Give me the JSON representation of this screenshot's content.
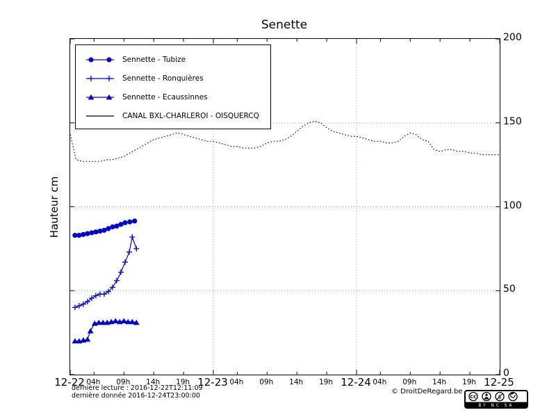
{
  "title": "Senette",
  "ylabel": "Hauteur cm",
  "footer": {
    "line1": "dernière lecture : 2016-12-22T12:11:09",
    "line2": "dernière donnée  2016-12-24T23:00:00",
    "copyright": "© DroitDeRegard.be",
    "cc_badge": "BY NC SA"
  },
  "chart_data": {
    "type": "line",
    "title": "Senette",
    "xlabel": "",
    "ylabel": "Hauteur cm",
    "ylim": [
      0,
      200
    ],
    "xlim_hours": [
      0,
      72
    ],
    "x_unit": "hours since 2016-12-22 00:00",
    "grid": {
      "vertical_hours": [
        24,
        48
      ],
      "horizontal_values": [
        50,
        100,
        150
      ]
    },
    "legend_position": "upper-left",
    "y_ticks": [
      0,
      50,
      100,
      150,
      200
    ],
    "x_major_ticks": [
      {
        "hour": 0,
        "label": "12-22"
      },
      {
        "hour": 24,
        "label": "12-23"
      },
      {
        "hour": 48,
        "label": "12-24"
      },
      {
        "hour": 72,
        "label": "12-25"
      }
    ],
    "x_minor_ticks": [
      {
        "hour": 4,
        "label": "04h"
      },
      {
        "hour": 9,
        "label": "09h"
      },
      {
        "hour": 14,
        "label": "14h"
      },
      {
        "hour": 19,
        "label": "19h"
      },
      {
        "hour": 28,
        "label": "04h"
      },
      {
        "hour": 33,
        "label": "09h"
      },
      {
        "hour": 38,
        "label": "14h"
      },
      {
        "hour": 43,
        "label": "19h"
      },
      {
        "hour": 52,
        "label": "04h"
      },
      {
        "hour": 57,
        "label": "09h"
      },
      {
        "hour": 62,
        "label": "14h"
      },
      {
        "hour": 67,
        "label": "19h"
      }
    ],
    "series": [
      {
        "name": "Sennette - Tubize",
        "color": "#0000cc",
        "marker": "circle",
        "linestyle": "solid",
        "points": [
          [
            0.8,
            83
          ],
          [
            1.5,
            83
          ],
          [
            2.2,
            83.5
          ],
          [
            2.9,
            84
          ],
          [
            3.6,
            84.5
          ],
          [
            4.3,
            85
          ],
          [
            5.0,
            85.5
          ],
          [
            5.7,
            86
          ],
          [
            6.4,
            87
          ],
          [
            7.1,
            88
          ],
          [
            7.8,
            88.5
          ],
          [
            8.5,
            89.5
          ],
          [
            9.2,
            90.5
          ],
          [
            10.0,
            91
          ],
          [
            10.8,
            91.5
          ]
        ]
      },
      {
        "name": "Sennette - Ronquières",
        "color": "#0000cc",
        "marker": "plus",
        "linestyle": "solid",
        "points": [
          [
            0.8,
            40
          ],
          [
            1.5,
            41
          ],
          [
            2.2,
            42
          ],
          [
            2.9,
            43.5
          ],
          [
            3.6,
            45.5
          ],
          [
            4.3,
            47
          ],
          [
            5.0,
            48
          ],
          [
            5.7,
            48
          ],
          [
            6.4,
            49.5
          ],
          [
            7.1,
            52
          ],
          [
            7.8,
            56
          ],
          [
            8.5,
            61
          ],
          [
            9.2,
            67
          ],
          [
            9.9,
            73
          ],
          [
            10.4,
            82
          ],
          [
            11.1,
            75
          ]
        ]
      },
      {
        "name": "Sennette - Ecaussinnes",
        "color": "#0000cc",
        "marker": "triangle",
        "linestyle": "solid",
        "points": [
          [
            0.8,
            20
          ],
          [
            1.5,
            20
          ],
          [
            2.2,
            20.5
          ],
          [
            2.9,
            21
          ],
          [
            3.4,
            26
          ],
          [
            4.1,
            30.5
          ],
          [
            4.8,
            31
          ],
          [
            5.5,
            31
          ],
          [
            6.2,
            31
          ],
          [
            6.9,
            31.5
          ],
          [
            7.6,
            32
          ],
          [
            8.3,
            31.5
          ],
          [
            9.0,
            32
          ],
          [
            9.7,
            31.5
          ],
          [
            10.4,
            31.5
          ],
          [
            11.1,
            31
          ]
        ]
      },
      {
        "name": "CANAL BXL-CHARLEROI - OISQUERCQ",
        "color": "#000000",
        "marker": "none",
        "linestyle": "dotted",
        "points": [
          [
            0,
            143
          ],
          [
            1,
            128
          ],
          [
            2,
            127
          ],
          [
            3,
            127
          ],
          [
            4,
            127
          ],
          [
            5,
            127
          ],
          [
            6,
            128
          ],
          [
            7,
            128
          ],
          [
            8,
            129
          ],
          [
            9,
            130
          ],
          [
            10,
            132
          ],
          [
            11,
            134
          ],
          [
            12,
            136
          ],
          [
            13,
            138
          ],
          [
            14,
            140
          ],
          [
            15,
            141
          ],
          [
            16,
            142
          ],
          [
            17,
            143
          ],
          [
            18,
            144
          ],
          [
            19,
            143
          ],
          [
            20,
            142
          ],
          [
            21,
            141
          ],
          [
            22,
            140
          ],
          [
            23,
            139
          ],
          [
            24,
            139
          ],
          [
            25,
            138
          ],
          [
            26,
            137
          ],
          [
            27,
            136
          ],
          [
            28,
            136
          ],
          [
            29,
            135
          ],
          [
            30,
            135
          ],
          [
            31,
            135
          ],
          [
            32,
            136
          ],
          [
            33,
            138
          ],
          [
            34,
            139
          ],
          [
            35,
            139
          ],
          [
            36,
            140
          ],
          [
            37,
            142
          ],
          [
            38,
            145
          ],
          [
            39,
            148
          ],
          [
            40,
            150
          ],
          [
            41,
            151
          ],
          [
            42,
            150
          ],
          [
            43,
            147
          ],
          [
            44,
            145
          ],
          [
            45,
            144
          ],
          [
            46,
            143
          ],
          [
            47,
            142
          ],
          [
            48,
            142
          ],
          [
            49,
            141
          ],
          [
            50,
            140
          ],
          [
            51,
            139
          ],
          [
            52,
            139
          ],
          [
            53,
            138
          ],
          [
            54,
            138
          ],
          [
            55,
            139
          ],
          [
            56,
            142
          ],
          [
            57,
            144
          ],
          [
            58,
            143
          ],
          [
            59,
            140
          ],
          [
            60,
            139
          ],
          [
            61,
            134
          ],
          [
            62,
            133
          ],
          [
            63,
            134
          ],
          [
            64,
            134
          ],
          [
            65,
            133
          ],
          [
            66,
            133
          ],
          [
            67,
            132
          ],
          [
            68,
            132
          ],
          [
            69,
            131
          ],
          [
            70,
            131
          ],
          [
            71,
            131
          ],
          [
            71.9,
            131
          ]
        ]
      }
    ]
  }
}
